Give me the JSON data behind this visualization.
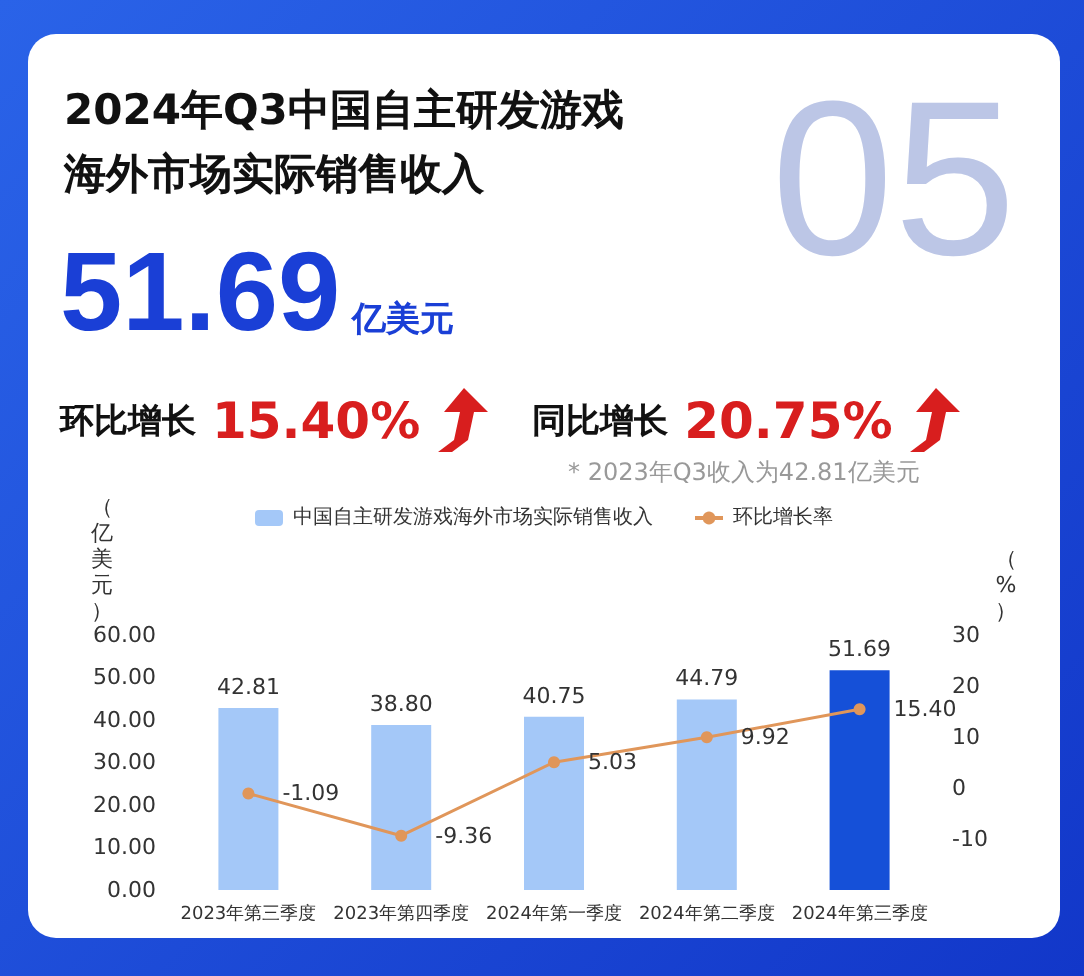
{
  "chart_data": {
    "type": "bar",
    "title": "2024年Q3中国自主研发游戏海外市场实际销售收入",
    "annotations": [
      "05",
      "51.69",
      "亿美元",
      "环比增长",
      "15.40%",
      "同比增长",
      "20.75%",
      "* 2023年Q3收入为42.81亿美元"
    ],
    "categories": [
      "2023年第三季度",
      "2023年第四季度",
      "2024年第一季度",
      "2024年第二季度",
      "2024年第三季度"
    ],
    "series": [
      {
        "name": "中国自主研发游戏海外市场实际销售收入",
        "color": "#a4c8f8",
        "colors": [
          "#a4c8f8",
          "#a4c8f8",
          "#a4c8f8",
          "#a4c8f8",
          "#1550d8"
        ],
        "values": [
          42.81,
          38.8,
          40.75,
          44.79,
          51.69
        ],
        "value_labels": [
          "42.81",
          "38.80",
          "40.75",
          "44.79",
          "51.69"
        ]
      },
      {
        "name": "环比增长率",
        "type": "line",
        "axis": "y2",
        "color": "#e0965a",
        "values": [
          -1.09,
          -9.36,
          5.03,
          9.92,
          15.4
        ],
        "value_labels": [
          "-1.09",
          "-9.36",
          "5.03",
          "9.92",
          "15.40"
        ]
      }
    ],
    "ylabel": "（亿美元）",
    "y2label": "（%）",
    "ylim": [
      0,
      60
    ],
    "yticks": [
      {
        "value": 0,
        "label": "0.00"
      },
      {
        "value": 10,
        "label": "10.00"
      },
      {
        "value": 20,
        "label": "20.00"
      },
      {
        "value": 30,
        "label": "30.00"
      },
      {
        "value": 40,
        "label": "40.00"
      },
      {
        "value": 50,
        "label": "50.00"
      },
      {
        "value": 60,
        "label": "60.00"
      }
    ],
    "y2lim": [
      -20,
      30
    ],
    "y2ticks": [
      -10,
      0,
      10,
      20,
      30
    ],
    "legend": "top",
    "grid": false,
    "marker": "circle",
    "line_style": "solid"
  }
}
